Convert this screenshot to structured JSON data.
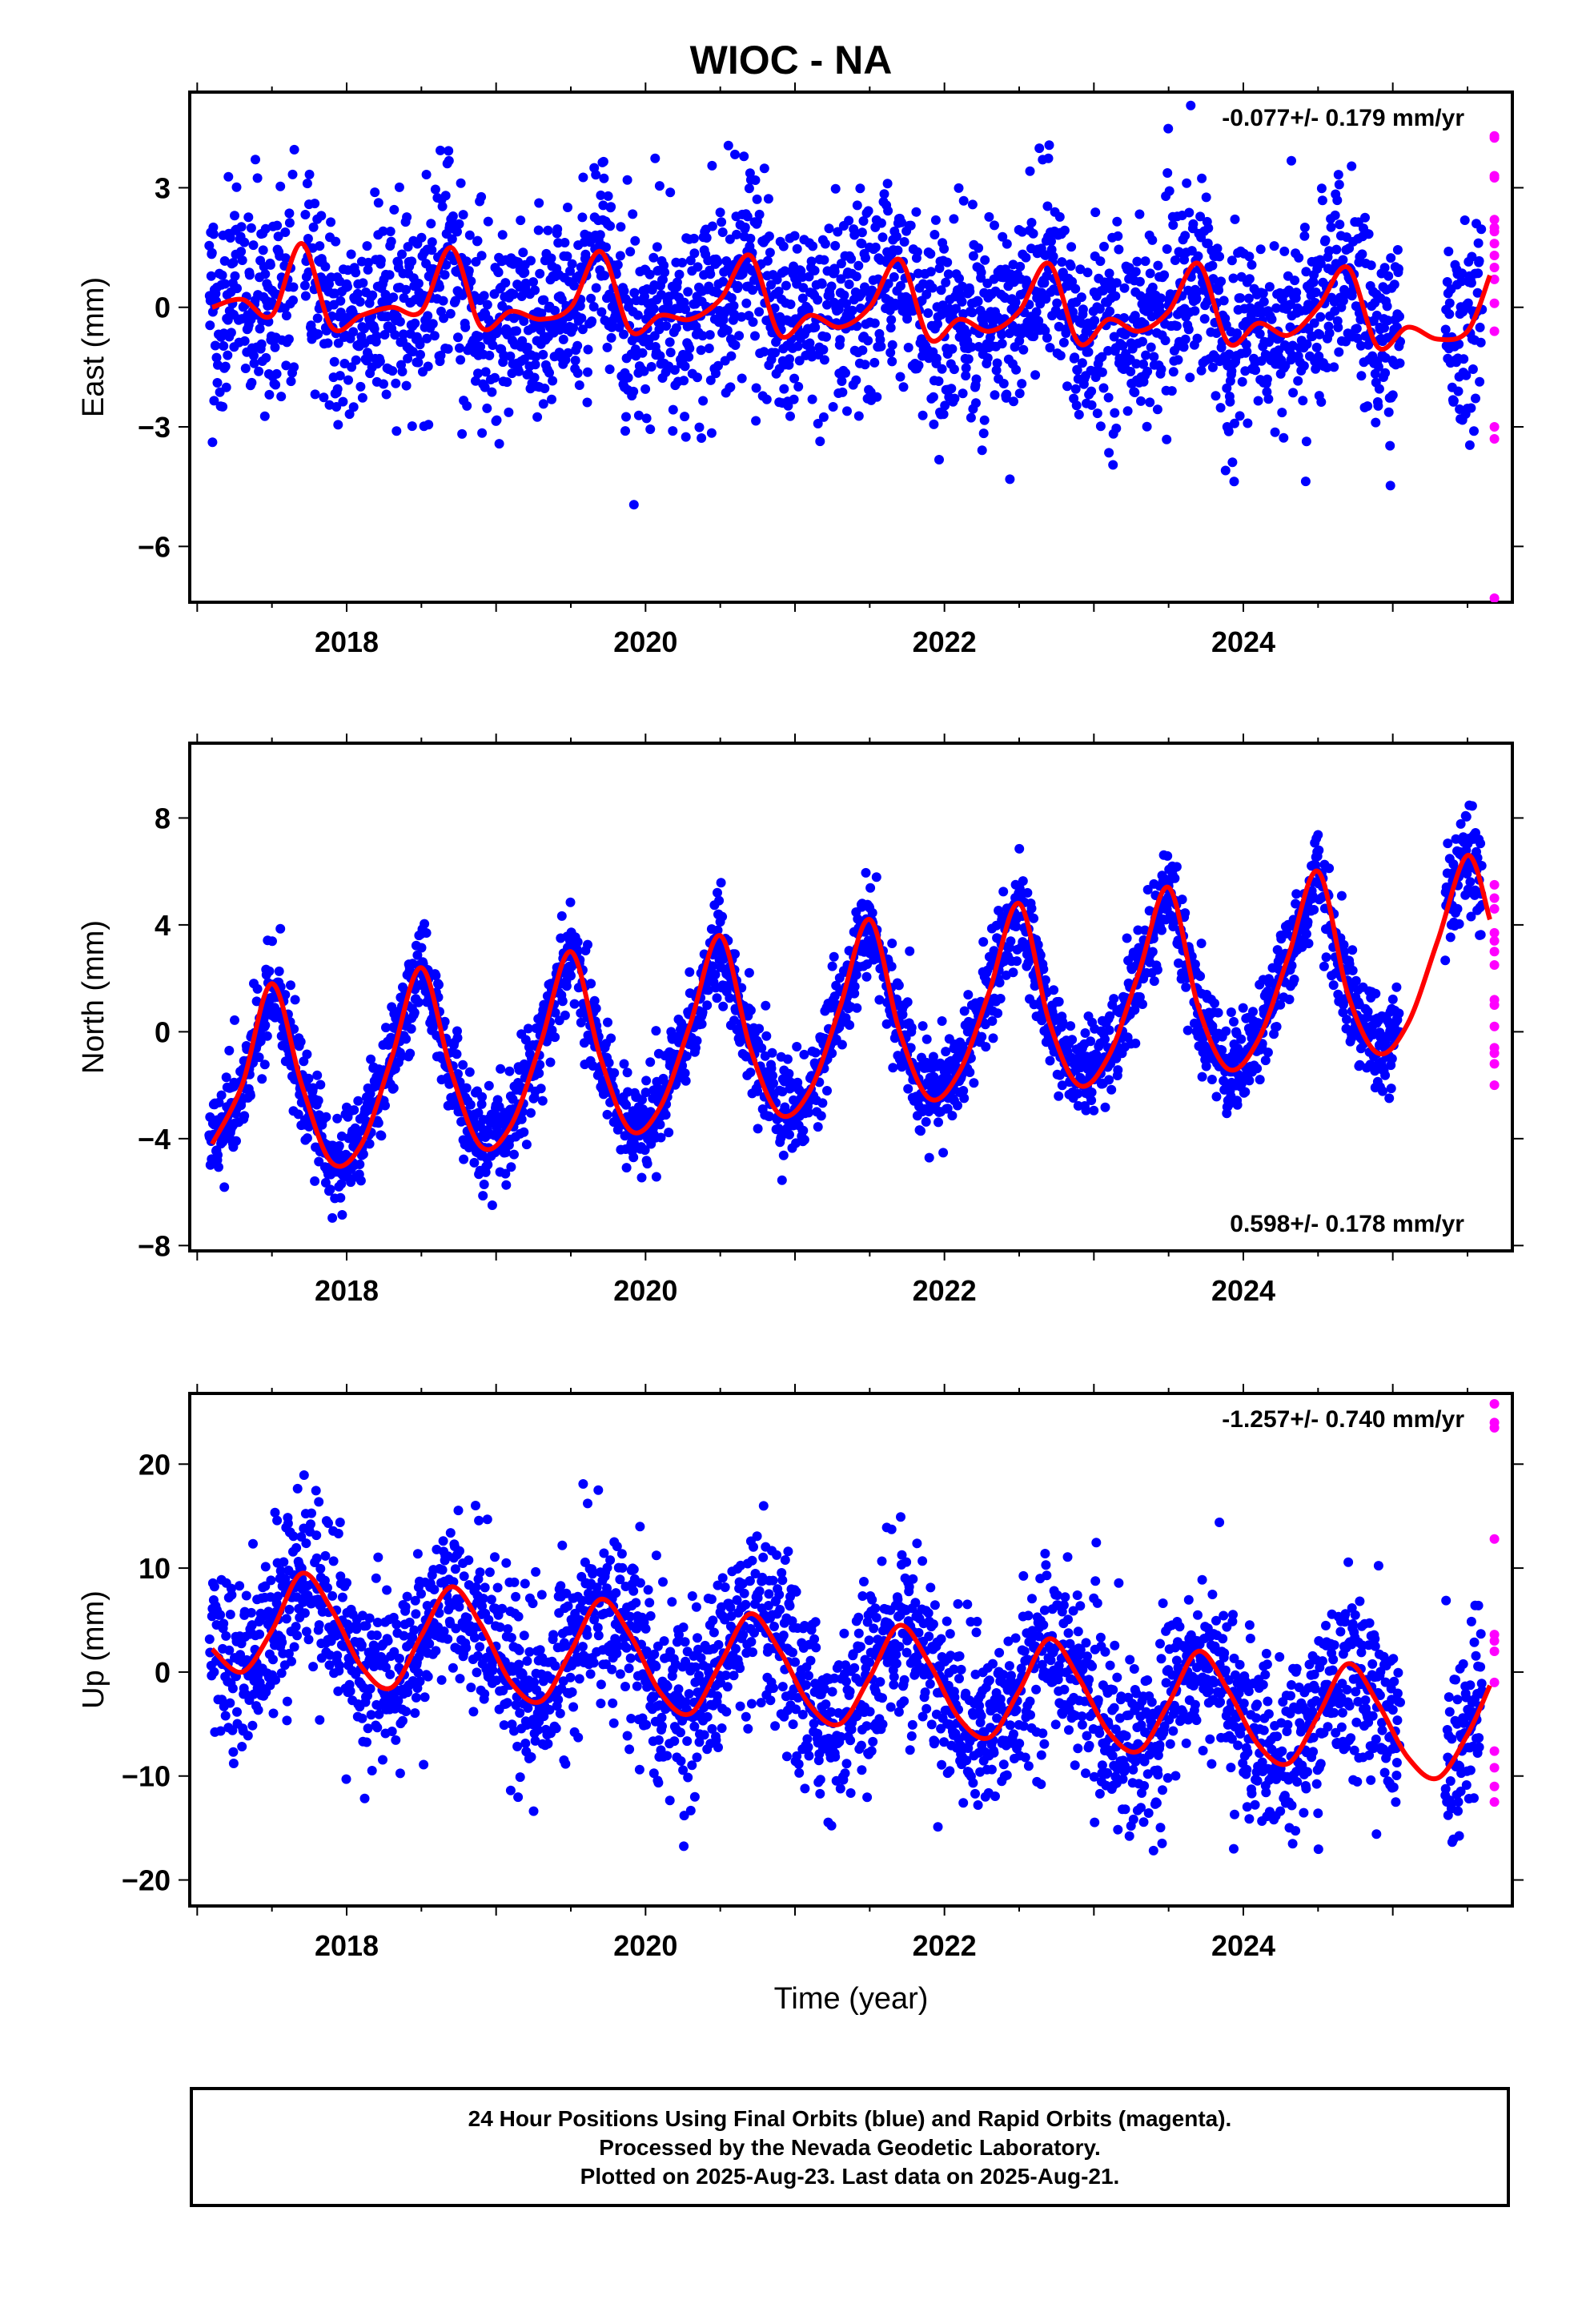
{
  "title": "WIOC - NA",
  "footer": {
    "line1": "24 Hour Positions Using Final Orbits (blue) and Rapid Orbits (magenta).",
    "line2": "Processed by the Nevada Geodetic Laboratory.",
    "line3": "Plotted on 2025-Aug-23. Last data on 2025-Aug-21."
  },
  "chart_data": [
    {
      "type": "scatter",
      "title": "",
      "xlabel": "",
      "ylabel": "East (mm)",
      "rate_label": "-0.077+/- 0.179 mm/yr",
      "rate_position": "top-right",
      "xlim": [
        2016.95,
        2025.8
      ],
      "ylim": [
        -7.4,
        5.4
      ],
      "x_ticks": [
        2018,
        2020,
        2022,
        2024
      ],
      "y_ticks": [
        3,
        0,
        -3,
        -6
      ],
      "series": [
        {
          "role": "final-orbits",
          "color": "#0000ff",
          "mean_amplitude": 0.6,
          "phase": 0.72,
          "scatter": 1.2,
          "start": 2017.08,
          "end": 2025.6,
          "gaps": [
            [
              2017.65,
              2017.72
            ],
            [
              2025.05,
              2025.35
            ]
          ]
        },
        {
          "role": "rapid-orbits",
          "color": "#ff00ff",
          "x": [
            2025.68,
            2025.68,
            2025.68,
            2025.68,
            2025.68,
            2025.68,
            2025.68,
            2025.68,
            2025.68,
            2025.68,
            2025.68,
            2025.68,
            2025.68,
            2025.68,
            2025.68,
            2025.68
          ],
          "y": [
            4.3,
            4.25,
            3.3,
            3.25,
            2.2,
            1.9,
            1.6,
            1.0,
            0.7,
            0.1,
            -0.6,
            -3.0,
            -3.3,
            -7.3,
            2.0,
            1.3
          ]
        },
        {
          "role": "model-fit",
          "color": "#ff0000",
          "x": [
            2017.1,
            2017.3,
            2017.5,
            2017.7,
            2017.9,
            2018.1,
            2018.3,
            2018.5,
            2018.7,
            2018.9,
            2019.1,
            2019.3,
            2019.5,
            2019.7,
            2019.9,
            2020.1,
            2020.3,
            2020.5,
            2020.7,
            2020.9,
            2021.1,
            2021.3,
            2021.5,
            2021.7,
            2021.9,
            2022.1,
            2022.3,
            2022.5,
            2022.7,
            2022.9,
            2023.1,
            2023.3,
            2023.5,
            2023.7,
            2023.9,
            2024.1,
            2024.3,
            2024.5,
            2024.7,
            2024.9,
            2025.1,
            2025.3,
            2025.5,
            2025.65
          ],
          "y": [
            0.0,
            0.2,
            -0.2,
            1.6,
            -0.5,
            -0.2,
            0.0,
            -0.1,
            1.5,
            -0.5,
            -0.1,
            -0.3,
            0.0,
            1.4,
            -0.6,
            -0.2,
            -0.3,
            0.2,
            1.3,
            -0.7,
            -0.2,
            -0.5,
            0.0,
            1.2,
            -0.8,
            -0.3,
            -0.6,
            -0.1,
            1.1,
            -0.9,
            -0.3,
            -0.6,
            -0.1,
            1.1,
            -0.9,
            -0.4,
            -0.7,
            0.0,
            1.0,
            -1.0,
            -0.5,
            -0.8,
            -0.6,
            0.8
          ]
        }
      ]
    },
    {
      "type": "scatter",
      "title": "",
      "xlabel": "",
      "ylabel": "North (mm)",
      "rate_label": "0.598+/- 0.178 mm/yr",
      "rate_position": "bottom-right",
      "xlim": [
        2016.95,
        2025.8
      ],
      "ylim": [
        -8.2,
        10.8
      ],
      "x_ticks": [
        2018,
        2020,
        2022,
        2024
      ],
      "y_ticks": [
        8,
        4,
        0,
        -4,
        -8
      ],
      "series": [
        {
          "role": "final-orbits",
          "color": "#0000ff",
          "mean_amplitude": 3.4,
          "phase": 0.45,
          "scatter": 0.9,
          "start": 2017.08,
          "end": 2025.6,
          "gaps": [
            [
              2025.05,
              2025.35
            ]
          ]
        },
        {
          "role": "rapid-orbits",
          "color": "#ff00ff",
          "x": [
            2025.68,
            2025.68,
            2025.68,
            2025.68,
            2025.68,
            2025.68,
            2025.68,
            2025.68,
            2025.68,
            2025.68,
            2025.68,
            2025.68,
            2025.68,
            2025.68
          ],
          "y": [
            5.5,
            5.0,
            4.6,
            3.7,
            3.4,
            3.0,
            2.5,
            1.2,
            1.0,
            0.2,
            -0.6,
            -0.8,
            -1.2,
            -2.0
          ]
        },
        {
          "role": "model-fit",
          "color": "#ff0000",
          "x": [
            2017.1,
            2017.3,
            2017.5,
            2017.7,
            2017.9,
            2018.1,
            2018.3,
            2018.5,
            2018.7,
            2018.9,
            2019.1,
            2019.3,
            2019.5,
            2019.7,
            2019.9,
            2020.1,
            2020.3,
            2020.5,
            2020.7,
            2020.9,
            2021.1,
            2021.3,
            2021.5,
            2021.7,
            2021.9,
            2022.1,
            2022.3,
            2022.5,
            2022.7,
            2022.9,
            2023.1,
            2023.3,
            2023.5,
            2023.7,
            2023.9,
            2024.1,
            2024.3,
            2024.5,
            2024.7,
            2024.9,
            2025.1,
            2025.3,
            2025.5,
            2025.65
          ],
          "y": [
            -4.2,
            -2.0,
            1.8,
            -2.0,
            -4.9,
            -4.2,
            -1.0,
            2.4,
            -1.5,
            -4.3,
            -3.5,
            -0.4,
            3.0,
            -1.0,
            -3.7,
            -2.8,
            0.3,
            3.6,
            -0.6,
            -3.1,
            -2.2,
            0.9,
            4.2,
            0.0,
            -2.5,
            -1.5,
            1.5,
            4.8,
            0.4,
            -2.0,
            -0.9,
            2.2,
            5.4,
            0.9,
            -1.4,
            -0.3,
            2.8,
            6.0,
            1.4,
            -0.8,
            0.3,
            3.4,
            6.6,
            4.2
          ]
        }
      ]
    },
    {
      "type": "scatter",
      "title": "",
      "xlabel": "Time (year)",
      "ylabel": "Up (mm)",
      "rate_label": "-1.257+/- 0.740 mm/yr",
      "rate_position": "top-right",
      "xlim": [
        2016.95,
        2025.8
      ],
      "ylim": [
        -22.5,
        26.8
      ],
      "x_ticks": [
        2018,
        2020,
        2022,
        2024
      ],
      "y_ticks": [
        20,
        10,
        0,
        -10,
        -20
      ],
      "series": [
        {
          "role": "final-orbits",
          "color": "#0000ff",
          "mean_amplitude": 6.0,
          "phase": 0.72,
          "scatter": 4.2,
          "start": 2017.08,
          "end": 2025.6,
          "gaps": [
            [
              2025.05,
              2025.35
            ]
          ]
        },
        {
          "role": "rapid-orbits",
          "color": "#ff00ff",
          "x": [
            2025.68,
            2025.68,
            2025.68,
            2025.68,
            2025.68,
            2025.68,
            2025.68,
            2025.68,
            2025.68,
            2025.68,
            2025.68,
            2025.68
          ],
          "y": [
            25.8,
            24.0,
            23.5,
            12.8,
            3.6,
            3.0,
            2.0,
            -1.0,
            -7.6,
            -9.2,
            -11.0,
            -12.5
          ]
        },
        {
          "role": "model-fit",
          "color": "#ff0000",
          "x": [
            2017.1,
            2017.3,
            2017.5,
            2017.7,
            2017.9,
            2018.1,
            2018.3,
            2018.5,
            2018.7,
            2018.9,
            2019.1,
            2019.3,
            2019.5,
            2019.7,
            2019.9,
            2020.1,
            2020.3,
            2020.5,
            2020.7,
            2020.9,
            2021.1,
            2021.3,
            2021.5,
            2021.7,
            2021.9,
            2022.1,
            2022.3,
            2022.5,
            2022.7,
            2022.9,
            2023.1,
            2023.3,
            2023.5,
            2023.7,
            2023.9,
            2024.1,
            2024.3,
            2024.5,
            2024.7,
            2024.9,
            2025.1,
            2025.3,
            2025.5,
            2025.65
          ],
          "y": [
            2.2,
            0.0,
            4.0,
            9.5,
            6.0,
            0.5,
            -1.5,
            3.5,
            8.2,
            4.5,
            -1.0,
            -2.8,
            2.0,
            7.0,
            3.5,
            -2.0,
            -4.0,
            0.8,
            5.6,
            2.0,
            -3.2,
            -5.0,
            -0.5,
            4.5,
            0.8,
            -4.5,
            -6.3,
            -1.8,
            3.2,
            -0.6,
            -5.8,
            -7.6,
            -3.0,
            2.0,
            -1.8,
            -7.0,
            -8.8,
            -4.2,
            0.8,
            -3.0,
            -8.2,
            -10.2,
            -6.0,
            -1.3
          ]
        }
      ]
    }
  ]
}
